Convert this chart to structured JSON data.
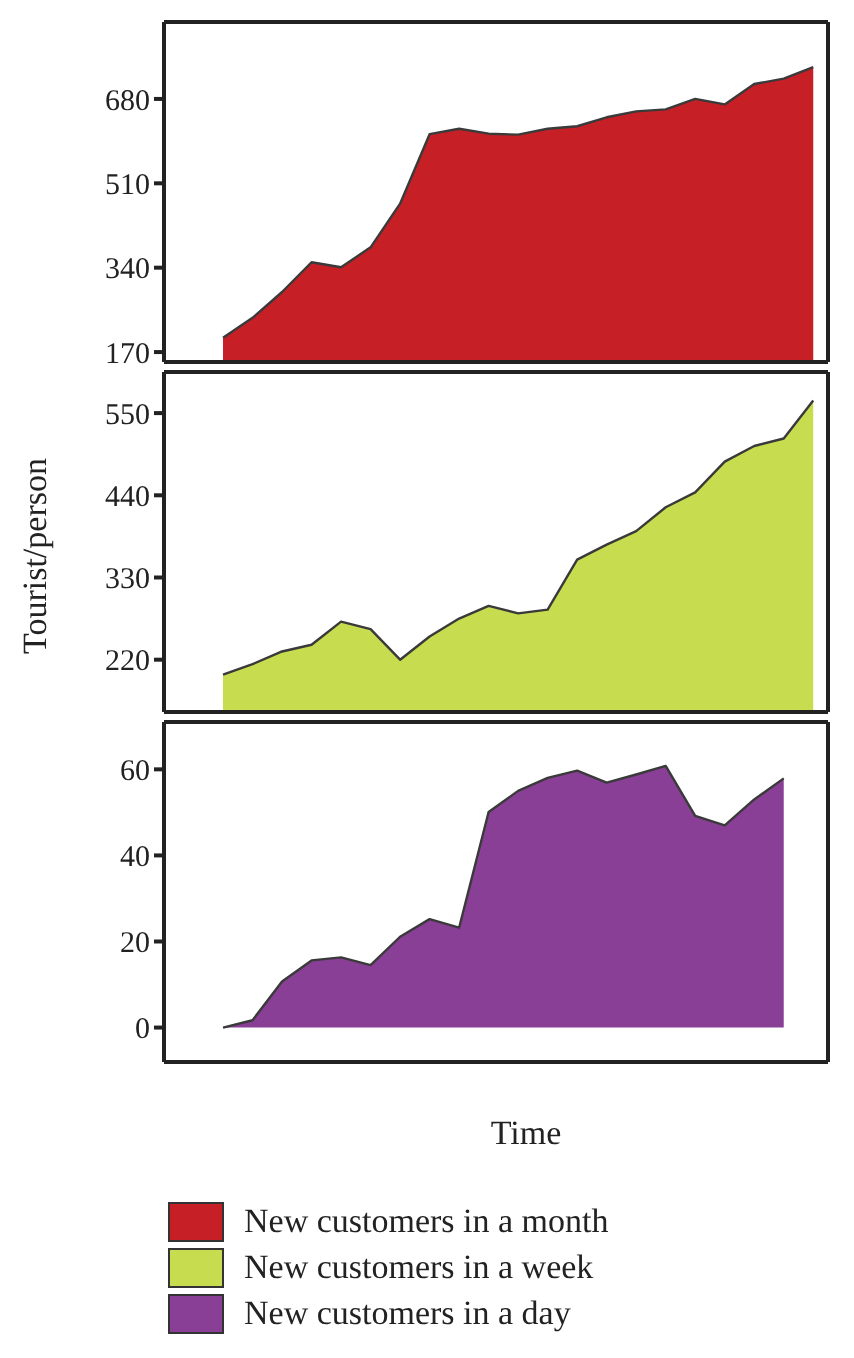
{
  "chart_data": [
    {
      "type": "area",
      "categories": [
        null,
        null,
        null,
        null,
        null,
        null,
        null,
        null,
        null,
        null,
        null,
        null,
        null,
        null,
        null,
        null,
        null,
        null,
        null,
        null,
        null
      ],
      "series": [
        {
          "name": "New customers in a month",
          "color": "#c62026",
          "values": [
            199,
            239,
            291,
            351,
            341,
            381,
            469,
            609,
            620,
            610,
            608,
            620,
            625,
            643,
            655,
            659,
            680,
            669,
            710,
            721,
            744
          ]
        }
      ],
      "ylim": [
        150,
        835
      ],
      "yticks": [
        170,
        340,
        510,
        680
      ],
      "tick_labels": "y",
      "legend": "bottom"
    },
    {
      "type": "area",
      "categories": [
        null,
        null,
        null,
        null,
        null,
        null,
        null,
        null,
        null,
        null,
        null,
        null,
        null,
        null,
        null,
        null,
        null,
        null,
        null,
        null,
        null
      ],
      "series": [
        {
          "name": "New customers in a week",
          "color": "#c8dc50",
          "values": [
            200,
            214,
            231,
            240,
            271,
            261,
            220,
            251,
            275,
            292,
            282,
            287,
            354,
            374,
            392,
            424,
            444,
            485,
            506,
            516,
            567
          ]
        }
      ],
      "ylim": [
        150,
        605
      ],
      "yticks": [
        220,
        330,
        440,
        550
      ],
      "ylabel": "Tourist/person",
      "tick_labels": "y",
      "legend": "bottom"
    },
    {
      "type": "area",
      "categories": [
        null,
        null,
        null,
        null,
        null,
        null,
        null,
        null,
        null,
        null,
        null,
        null,
        null,
        null,
        null,
        null,
        null,
        null,
        null,
        null,
        null
      ],
      "series": [
        {
          "name": "New customers in a day",
          "color": "#8a3f96",
          "values": [
            0,
            1.7,
            10.7,
            15.6,
            16.3,
            14.5,
            21.1,
            25.2,
            23.2,
            50.1,
            55,
            58,
            59.7,
            56.9,
            58.8,
            60.8,
            49.2,
            47,
            53,
            57.9,
            null
          ]
        }
      ],
      "ylim": [
        -8,
        71
      ],
      "yticks": [
        0,
        20,
        40,
        60
      ],
      "xlabel": "Time",
      "tick_labels": "y",
      "legend": "bottom"
    }
  ]
}
